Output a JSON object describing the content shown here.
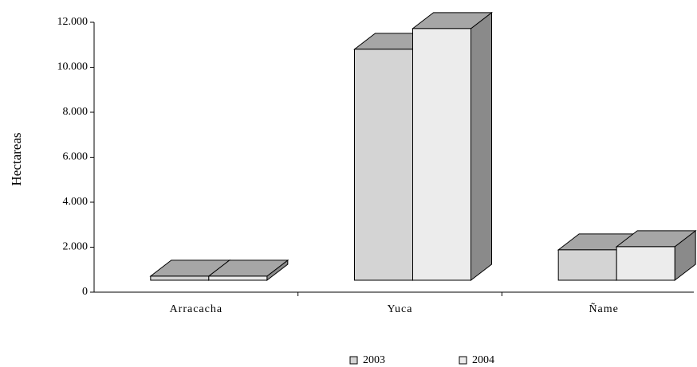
{
  "chart_data": {
    "type": "bar3d",
    "y_label": "Hectareas",
    "categories": [
      "Arracacha",
      "Yuca",
      "Ñame"
    ],
    "series": [
      {
        "name": "2003",
        "color": "#d4d4d4",
        "values": [
          180,
          10270,
          1350
        ]
      },
      {
        "name": "2004",
        "color": "#ececec",
        "values": [
          180,
          11190,
          1490
        ]
      }
    ],
    "ylim": [
      0,
      12000
    ],
    "yticks": [
      0,
      {
        "value": 2000,
        "label": "2.000"
      },
      {
        "value": 4000,
        "label": "4.000"
      },
      {
        "value": 6000,
        "label": "6.000"
      },
      {
        "value": 8000,
        "label": "8.000"
      },
      {
        "value": 10000,
        "label": "10.000"
      },
      {
        "value": 12000,
        "label": "12.000"
      }
    ]
  }
}
